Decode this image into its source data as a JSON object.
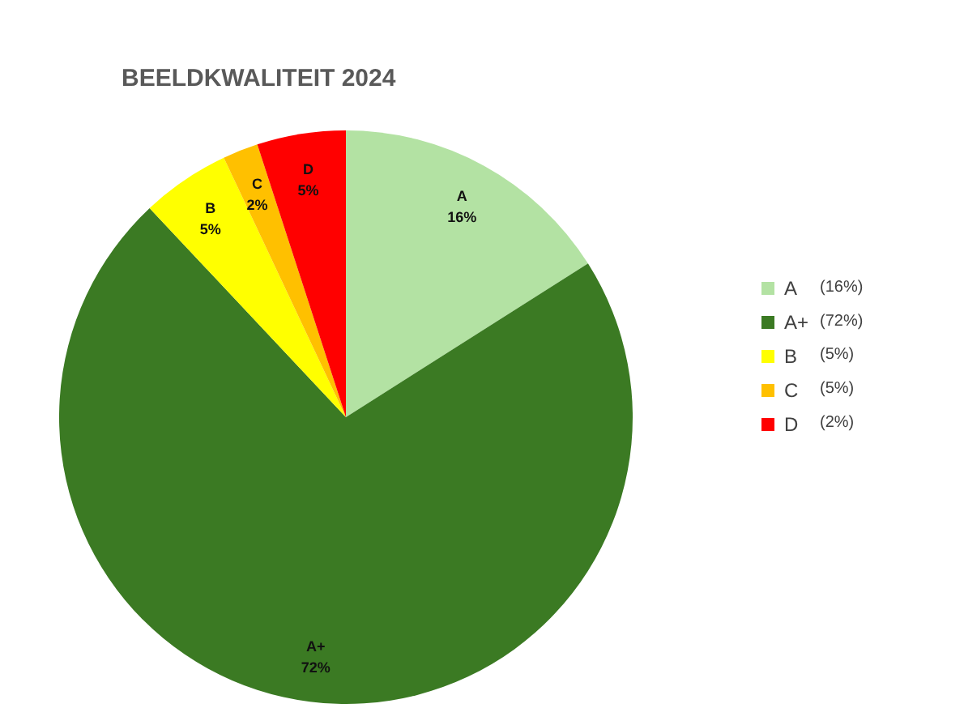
{
  "chart_data": {
    "type": "pie",
    "title": "BEELDKWALITEIT 2024",
    "categories": [
      "A",
      "A+",
      "B",
      "C",
      "D"
    ],
    "values": [
      16,
      72,
      5,
      2,
      5
    ],
    "value_labels": [
      "16%",
      "72%",
      "5%",
      "2%",
      "5%"
    ],
    "colors": [
      "#b3e2a3",
      "#3b7a23",
      "#ffff00",
      "#ffc000",
      "#ff0000"
    ],
    "legend": "right",
    "annotations": [
      "(16%)",
      "(72%)",
      "(5%)",
      "(5%)",
      "(2%)"
    ]
  }
}
